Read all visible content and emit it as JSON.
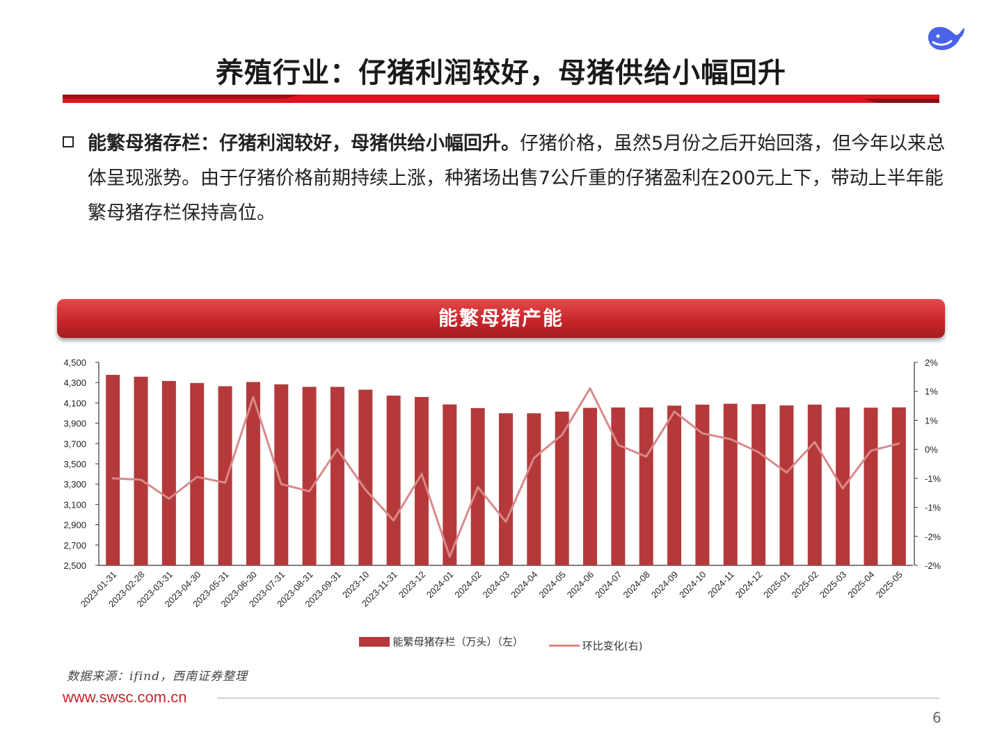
{
  "slide": {
    "title": "养殖行业：仔猪利润较好，母猪供给小幅回升",
    "bullet_bold": "能繁母猪存栏：仔猪利润较好，母猪供给小幅回升。",
    "bullet_text": "仔猪价格，虽然5月份之后开始回落，但今年以来总体呈现涨势。由于仔猪价格前期持续上涨，种猪场出售7公斤重的仔猪盈利在200元上下，带动上半年能繁母猪存栏保持高位。",
    "banner": "能繁母猪产能",
    "source": "数据来源：ifind，西南证券整理",
    "website": "www.swsc.com.cn",
    "page_number": "6"
  },
  "colors": {
    "accent_red": "#c8262b",
    "bar": "#b5393a",
    "line": "#d9898a",
    "logo_blue": "#4b63e8"
  },
  "icons": [
    "deepseek-whale-logo-icon",
    "checkbox-bullet-icon"
  ],
  "chart_data": {
    "type": "bar+line",
    "categories": [
      "2023-01-31",
      "2023-02-28",
      "2023-03-31",
      "2023-04-30",
      "2023-05-31",
      "2023-06-30",
      "2023-07-31",
      "2023-08-31",
      "2023-09-31",
      "2023-10",
      "2023-11-31",
      "2023-12",
      "2024-01",
      "2024-02",
      "2024-03",
      "2024-04",
      "2024-05",
      "2024-06",
      "2024-07",
      "2024-08",
      "2024-09",
      "2024-10",
      "2024-11",
      "2024-12",
      "2025-01",
      "2025-02",
      "2025-03",
      "2025-04",
      "2025-05"
    ],
    "series": [
      {
        "name": "能繁母猪存栏（万头）（左）",
        "type": "bar",
        "axis": "left",
        "values": [
          4376,
          4358,
          4316,
          4296,
          4264,
          4306,
          4283,
          4258,
          4258,
          4230,
          4172,
          4158,
          4085,
          4049,
          3998,
          3998,
          4014,
          4051,
          4055,
          4055,
          4073,
          4083,
          4092,
          4088,
          4075,
          4083,
          4056,
          4053,
          4056
        ]
      },
      {
        "name": "环比变化(右)",
        "type": "line",
        "axis": "right",
        "values": [
          -1.0,
          -1.05,
          -1.7,
          -0.95,
          -1.15,
          1.8,
          -1.2,
          -1.45,
          0,
          -1.4,
          -2.45,
          -0.85,
          -3.7,
          -1.3,
          -2.5,
          -0.3,
          0.5,
          2.1,
          0.15,
          -0.25,
          1.3,
          0.55,
          0.35,
          -0.1,
          -0.8,
          0.25,
          -1.35,
          -0.05,
          0.2
        ]
      }
    ],
    "y_left": {
      "min": 2500,
      "max": 4500,
      "ticks": [
        "4,500",
        "4,300",
        "4,100",
        "3,900",
        "3,700",
        "3,500",
        "3,300",
        "3,100",
        "2,900",
        "2,700",
        "2,500"
      ]
    },
    "y_right": {
      "min": -4,
      "max": 3,
      "ticks": [
        "2%",
        "1%",
        "1%",
        "0%",
        "-1%",
        "-1%",
        "-2%",
        "-2%"
      ]
    },
    "grid": false,
    "legend_position": "bottom"
  }
}
